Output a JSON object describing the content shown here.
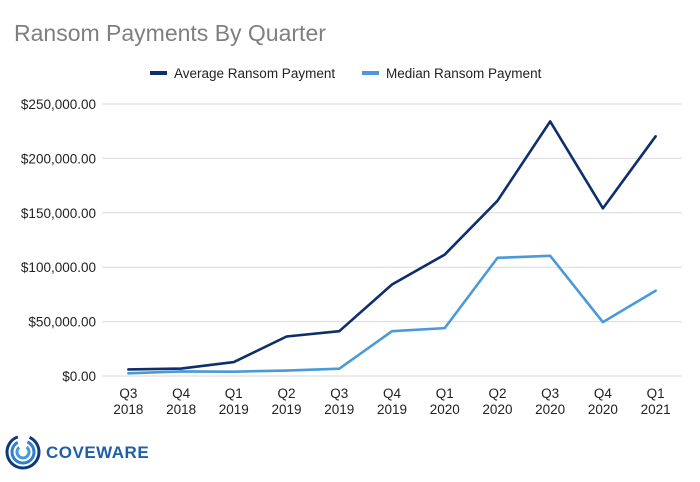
{
  "chart_data": {
    "type": "line",
    "title": "Ransom Payments By Quarter",
    "categories": [
      [
        "Q3",
        "2018"
      ],
      [
        "Q4",
        "2018"
      ],
      [
        "Q1",
        "2019"
      ],
      [
        "Q2",
        "2019"
      ],
      [
        "Q3",
        "2019"
      ],
      [
        "Q4",
        "2019"
      ],
      [
        "Q1",
        "2020"
      ],
      [
        "Q2",
        "2020"
      ],
      [
        "Q3",
        "2020"
      ],
      [
        "Q4",
        "2020"
      ],
      [
        "Q1",
        "2021"
      ]
    ],
    "series": [
      {
        "name": "Average Ransom Payment",
        "color": "#0e2f6b",
        "values": [
          6000,
          6800,
          12800,
          36300,
          41200,
          84100,
          111600,
          161000,
          234000,
          154100,
          220300
        ]
      },
      {
        "name": "Median Ransom Payment",
        "color": "#4a9ad9",
        "values": [
          2500,
          4200,
          4000,
          5000,
          6700,
          41200,
          44000,
          108600,
          110500,
          49500,
          78400
        ]
      }
    ],
    "ylim": [
      0,
      250000
    ],
    "yticks": [
      0,
      50000,
      100000,
      150000,
      200000,
      250000
    ],
    "ytick_labels": [
      "$0.00",
      "$50,000.00",
      "$100,000.00",
      "$150,000.00",
      "$200,000.00",
      "$250,000.00"
    ],
    "grid": true,
    "legend_position": "top"
  },
  "logo": {
    "text": "COVEWARE"
  }
}
